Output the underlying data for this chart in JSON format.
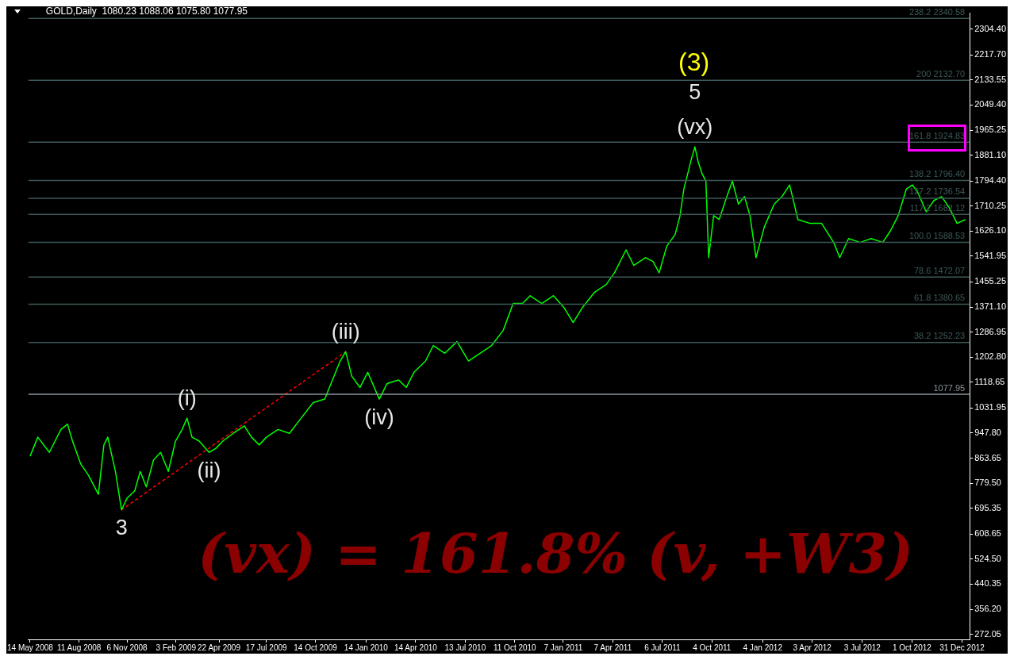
{
  "chart_data": {
    "type": "line",
    "title": "GOLD,Daily  1080.23 1088.06 1075.80 1077.95",
    "xlim": [
      "2008-05-11",
      "2013-01-14"
    ],
    "xticks": [
      {
        "value": "2008-05-14",
        "label": "14 May 2008"
      },
      {
        "value": "2008-08-11",
        "label": "11 Aug 2008"
      },
      {
        "value": "2008-11-06",
        "label": "6 Nov 2008"
      },
      {
        "value": "2009-02-03",
        "label": "3 Feb 2009"
      },
      {
        "value": "2009-04-22",
        "label": "22 Apr 2009"
      },
      {
        "value": "2009-07-17",
        "label": "17 Jul 2009"
      },
      {
        "value": "2009-10-14",
        "label": "14 Oct 2009"
      },
      {
        "value": "2010-01-14",
        "label": "14 Jan 2010"
      },
      {
        "value": "2010-04-14",
        "label": "14 Apr 2010"
      },
      {
        "value": "2010-07-13",
        "label": "13 Jul 2010"
      },
      {
        "value": "2010-10-11",
        "label": "11 Oct 2010"
      },
      {
        "value": "2011-01-07",
        "label": "7 Jan 2011"
      },
      {
        "value": "2011-04-07",
        "label": "7 Apr 2011"
      },
      {
        "value": "2011-07-06",
        "label": "6 Jul 2011"
      },
      {
        "value": "2011-10-04",
        "label": "4 Oct 2011"
      },
      {
        "value": "2012-01-04",
        "label": "4 Jan 2012"
      },
      {
        "value": "2012-04-03",
        "label": "3 Apr 2012"
      },
      {
        "value": "2012-07-03",
        "label": "3 Jul 2012"
      },
      {
        "value": "2012-10-01",
        "label": "1 Oct 2012"
      },
      {
        "value": "2012-12-31",
        "label": "31 Dec 2012"
      }
    ],
    "ylim": [
      255,
      2358
    ],
    "yticks": [
      {
        "value": 272.05,
        "label": "272.05"
      },
      {
        "value": 356.2,
        "label": "356.20"
      },
      {
        "value": 440.35,
        "label": "440.35"
      },
      {
        "value": 524.5,
        "label": "524.50"
      },
      {
        "value": 608.65,
        "label": "608.65"
      },
      {
        "value": 695.35,
        "label": "695.35"
      },
      {
        "value": 779.5,
        "label": "779.50"
      },
      {
        "value": 863.65,
        "label": "863.65"
      },
      {
        "value": 947.8,
        "label": "947.80"
      },
      {
        "value": 1031.95,
        "label": "1031.95"
      },
      {
        "value": 1118.65,
        "label": "1118.65"
      },
      {
        "value": 1202.8,
        "label": "1202.80"
      },
      {
        "value": 1286.95,
        "label": "1286.95"
      },
      {
        "value": 1371.1,
        "label": "1371.10"
      },
      {
        "value": 1455.25,
        "label": "1455.25"
      },
      {
        "value": 1541.95,
        "label": "1541.95"
      },
      {
        "value": 1626.1,
        "label": "1626.10"
      },
      {
        "value": 1710.25,
        "label": "1710.25"
      },
      {
        "value": 1794.4,
        "label": "1794.40"
      },
      {
        "value": 1881.1,
        "label": "1881.10"
      },
      {
        "value": 1965.25,
        "label": "1965.25"
      },
      {
        "value": 2049.4,
        "label": "2049.40"
      },
      {
        "value": 2133.55,
        "label": "2133.55"
      },
      {
        "value": 2217.7,
        "label": "2217.70"
      },
      {
        "value": 2304.4,
        "label": "2304.40"
      }
    ],
    "grid": false,
    "legend": false,
    "marker": "none",
    "series": [
      {
        "color": "#00ff00",
        "line_style": "solid",
        "x": [
          "2008-05-14",
          "2008-05-28",
          "2008-06-18",
          "2008-07-09",
          "2008-07-21",
          "2008-07-30",
          "2008-08-14",
          "2008-08-28",
          "2008-09-15",
          "2008-09-25",
          "2008-10-02",
          "2008-10-16",
          "2008-10-27",
          "2008-11-06",
          "2008-11-20",
          "2008-11-30",
          "2008-12-11",
          "2008-12-24",
          "2009-01-06",
          "2009-01-20",
          "2009-02-02",
          "2009-02-14",
          "2009-02-23",
          "2009-03-04",
          "2009-03-17",
          "2009-04-04",
          "2009-04-16",
          "2009-04-29",
          "2009-05-18",
          "2009-06-07",
          "2009-06-20",
          "2009-07-04",
          "2009-07-17",
          "2009-08-07",
          "2009-08-28",
          "2009-09-18",
          "2009-10-10",
          "2009-10-31",
          "2009-11-14",
          "2009-11-28",
          "2009-12-08",
          "2009-12-19",
          "2010-01-03",
          "2010-01-17",
          "2010-02-07",
          "2010-02-21",
          "2010-03-14",
          "2010-03-28",
          "2010-04-11",
          "2010-05-02",
          "2010-05-16",
          "2010-06-06",
          "2010-06-28",
          "2010-07-19",
          "2010-08-09",
          "2010-08-30",
          "2010-09-20",
          "2010-10-08",
          "2010-10-25",
          "2010-11-08",
          "2010-11-29",
          "2010-12-20",
          "2011-01-08",
          "2011-01-25",
          "2011-02-11",
          "2011-03-05",
          "2011-03-26",
          "2011-04-10",
          "2011-05-01",
          "2011-05-15",
          "2011-06-05",
          "2011-06-19",
          "2011-06-30",
          "2011-07-14",
          "2011-07-29",
          "2011-08-07",
          "2011-08-14",
          "2011-08-21",
          "2011-08-28",
          "2011-09-03",
          "2011-09-09",
          "2011-09-16",
          "2011-09-23",
          "2011-09-28",
          "2011-10-07",
          "2011-10-17",
          "2011-10-31",
          "2011-11-10",
          "2011-11-21",
          "2011-12-02",
          "2011-12-12",
          "2011-12-23",
          "2012-01-07",
          "2012-01-25",
          "2012-02-08",
          "2012-02-22",
          "2012-03-08",
          "2012-03-30",
          "2012-04-20",
          "2012-05-12",
          "2012-05-23",
          "2012-06-08",
          "2012-06-29",
          "2012-07-19",
          "2012-08-09",
          "2012-08-23",
          "2012-09-06",
          "2012-09-21",
          "2012-10-02",
          "2012-10-12",
          "2012-10-27",
          "2012-11-10",
          "2012-11-24",
          "2012-12-08",
          "2012-12-22",
          "2013-01-06"
        ],
        "values": [
          870,
          934,
          883,
          960,
          978,
          921,
          844,
          806,
          742,
          908,
          934,
          819,
          690,
          729,
          754,
          819,
          767,
          857,
          883,
          819,
          921,
          960,
          998,
          934,
          921,
          883,
          896,
          921,
          947,
          972,
          934,
          908,
          934,
          960,
          947,
          998,
          1050,
          1062,
          1126,
          1190,
          1221,
          1139,
          1101,
          1152,
          1062,
          1114,
          1126,
          1101,
          1152,
          1190,
          1242,
          1216,
          1255,
          1190,
          1216,
          1242,
          1293,
          1383,
          1383,
          1409,
          1383,
          1409,
          1370,
          1319,
          1370,
          1421,
          1447,
          1486,
          1563,
          1511,
          1537,
          1524,
          1486,
          1576,
          1614,
          1678,
          1768,
          1819,
          1871,
          1909,
          1858,
          1819,
          1794,
          1537,
          1678,
          1665,
          1742,
          1794,
          1717,
          1742,
          1678,
          1537,
          1640,
          1717,
          1742,
          1781,
          1665,
          1652,
          1652,
          1588,
          1537,
          1601,
          1588,
          1601,
          1588,
          1627,
          1678,
          1768,
          1781,
          1755,
          1691,
          1729,
          1742,
          1704,
          1652,
          1665
        ]
      },
      {
        "color": "#ff0000",
        "line_style": "dashed",
        "x": [
          "2008-10-27",
          "2009-12-08"
        ],
        "values": [
          690,
          1221
        ]
      }
    ],
    "ref_lines": [
      {
        "axis": "y",
        "value": 2340.58,
        "label": "238.2 2340.58",
        "color": "#3d5858"
      },
      {
        "axis": "y",
        "value": 2132.7,
        "label": "200 2132.70",
        "color": "#3d5858"
      },
      {
        "axis": "y",
        "value": 1924.83,
        "label": "161.8 1924.83",
        "color": "#3d5858"
      },
      {
        "axis": "y",
        "value": 1796.4,
        "label": "138.2 1796.40",
        "color": "#3d5858"
      },
      {
        "axis": "y",
        "value": 1736.54,
        "label": "127.2 1736.54",
        "color": "#3d5858"
      },
      {
        "axis": "y",
        "value": 1682.12,
        "label": "117.2 1682.12",
        "color": "#3d5858"
      },
      {
        "axis": "y",
        "value": 1588.53,
        "label": "100.0 1588.53",
        "color": "#3d5858"
      },
      {
        "axis": "y",
        "value": 1472.07,
        "label": "78.6 1472.07",
        "color": "#3d5858"
      },
      {
        "axis": "y",
        "value": 1380.65,
        "label": "61.8 1380.65",
        "color": "#3d5858"
      },
      {
        "axis": "y",
        "value": 1252.23,
        "label": "38.2 1252.23",
        "color": "#3d5858"
      },
      {
        "axis": "y",
        "value": 1077.95,
        "label": "1077.95",
        "color": "#8a9499"
      }
    ],
    "annotations": [
      {
        "text": "(vx)",
        "x": "2011-09-03",
        "y": 1909
      },
      {
        "text": "5",
        "x": "2011-09-03",
        "y": 1909
      },
      "(3)",
      {
        "text": "(iii)",
        "x": "2009-12-08",
        "y": 1221
      },
      {
        "text": "(i)",
        "x": "2009-02-23",
        "y": 998
      },
      {
        "text": "(ii)",
        "x": "2009-04-04",
        "y": 883
      },
      {
        "text": "(iv)",
        "x": "2010-02-07",
        "y": 1062
      },
      {
        "text": "3",
        "x": "2008-10-27",
        "y": 690
      },
      "(vx) = 161.8% (v, +W3)"
    ]
  }
}
